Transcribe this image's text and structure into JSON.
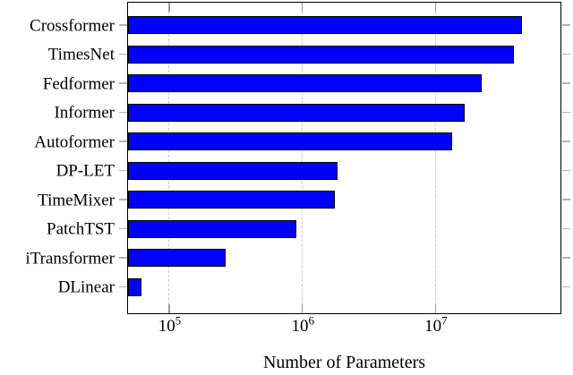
{
  "chart_data": {
    "type": "bar",
    "orientation": "horizontal",
    "title": "",
    "xlabel": "Number of Parameters",
    "ylabel": "",
    "x_scale": "log10",
    "xlim": [
      49000,
      87000000
    ],
    "grid": "vertical dashed lines at major log ticks",
    "legend": "none",
    "x_ticks": [
      {
        "value": 100000,
        "base": "10",
        "exp": "5"
      },
      {
        "value": 1000000,
        "base": "10",
        "exp": "6"
      },
      {
        "value": 10000000,
        "base": "10",
        "exp": "7"
      }
    ],
    "categories": [
      "Crossformer",
      "TimesNet",
      "Fedformer",
      "Informer",
      "Autoformer",
      "DP-LET",
      "TimeMixer",
      "PatchTST",
      "iTransformer",
      "DLinear"
    ],
    "values": [
      45000000,
      39000000,
      22300000,
      16600000,
      13400000,
      1850000,
      1750000,
      900000,
      265000,
      62000
    ],
    "colors": {
      "bar_fill": "#0000ff",
      "bar_border": "#000000",
      "frame": "#000000",
      "gridline": "#c9c9c9",
      "x_tick": "#999999",
      "y_tick": "#b3b3b3",
      "text": "#000000",
      "background": "#ffffff"
    }
  }
}
